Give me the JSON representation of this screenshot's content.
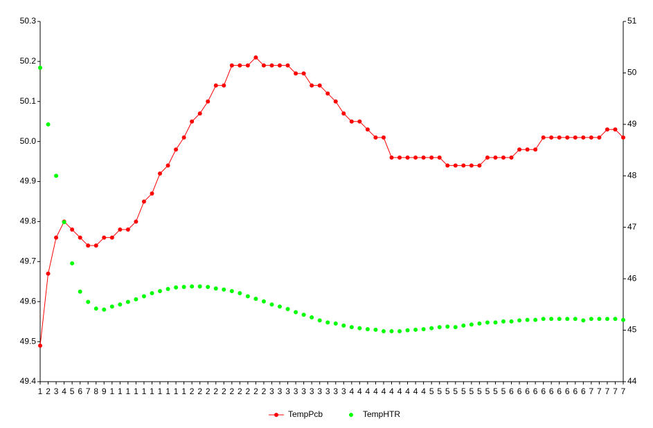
{
  "chart_data": {
    "type": "line",
    "categories": [
      "1",
      "2",
      "3",
      "4",
      "5",
      "6",
      "7",
      "8",
      "9",
      "1",
      "1",
      "1",
      "1",
      "1",
      "1",
      "1",
      "1",
      "1",
      "1",
      "2",
      "2",
      "2",
      "2",
      "2",
      "2",
      "2",
      "2",
      "2",
      "2",
      "3",
      "3",
      "3",
      "3",
      "3",
      "3",
      "3",
      "3",
      "3",
      "3",
      "4",
      "4",
      "4",
      "4",
      "4",
      "4",
      "4",
      "4",
      "4",
      "4",
      "5",
      "5",
      "5",
      "5",
      "5",
      "5",
      "5",
      "5",
      "5",
      "5",
      "6",
      "6",
      "6",
      "6",
      "6",
      "6",
      "6",
      "6",
      "6",
      "6",
      "7",
      "7",
      "7",
      "7",
      "7"
    ],
    "ylim": [
      49.4,
      50.3
    ],
    "yticks": [
      49.4,
      49.5,
      49.6,
      49.7,
      49.8,
      49.9,
      {
        "value": 50,
        "label": "50.0"
      },
      50.1,
      50.2,
      50.3
    ],
    "y2lim": [
      44,
      51
    ],
    "y2ticks": [
      44,
      45,
      46,
      47,
      48,
      49,
      50,
      51
    ],
    "legend": "bottom",
    "series": [
      {
        "name": "TempPcb",
        "color": "#ff0000",
        "line": true,
        "values": [
          49.49,
          49.67,
          49.76,
          49.8,
          49.78,
          49.76,
          49.74,
          49.74,
          49.76,
          49.76,
          49.78,
          49.78,
          49.8,
          49.85,
          49.87,
          49.92,
          49.94,
          49.98,
          50.01,
          50.05,
          50.07,
          50.1,
          50.14,
          50.14,
          50.19,
          50.19,
          50.19,
          50.21,
          50.19,
          50.19,
          50.19,
          50.19,
          50.17,
          50.17,
          50.14,
          50.14,
          50.12,
          50.1,
          50.07,
          50.05,
          50.05,
          50.03,
          50.01,
          50.01,
          49.96,
          49.96,
          49.96,
          49.96,
          49.96,
          49.96,
          49.96,
          49.94,
          49.94,
          49.94,
          49.94,
          49.94,
          49.96,
          49.96,
          49.96,
          49.96,
          49.98,
          49.98,
          49.98,
          50.01,
          50.01,
          50.01,
          50.01,
          50.01,
          50.01,
          50.01,
          50.01,
          50.03,
          50.03,
          50.01
        ]
      },
      {
        "name": "TempHTR",
        "color": "#00ff00",
        "line": false,
        "axis": "y2",
        "values": [
          50.1,
          49.0,
          48.0,
          47.1,
          46.3,
          45.75,
          45.55,
          45.42,
          45.4,
          45.46,
          45.5,
          45.55,
          45.6,
          45.66,
          45.72,
          45.76,
          45.8,
          45.83,
          45.84,
          45.85,
          45.85,
          45.84,
          45.81,
          45.79,
          45.76,
          45.72,
          45.66,
          45.61,
          45.56,
          45.5,
          45.46,
          45.41,
          45.35,
          45.3,
          45.25,
          45.19,
          45.15,
          45.13,
          45.09,
          45.06,
          45.04,
          45.02,
          45.01,
          44.98,
          44.98,
          44.98,
          45.0,
          45.01,
          45.02,
          45.04,
          45.06,
          45.07,
          45.06,
          45.09,
          45.11,
          45.13,
          45.15,
          45.15,
          45.17,
          45.17,
          45.19,
          45.2,
          45.2,
          45.22,
          45.22,
          45.22,
          45.22,
          45.22,
          45.19,
          45.22,
          45.22,
          45.22,
          45.22,
          45.2
        ]
      }
    ]
  }
}
